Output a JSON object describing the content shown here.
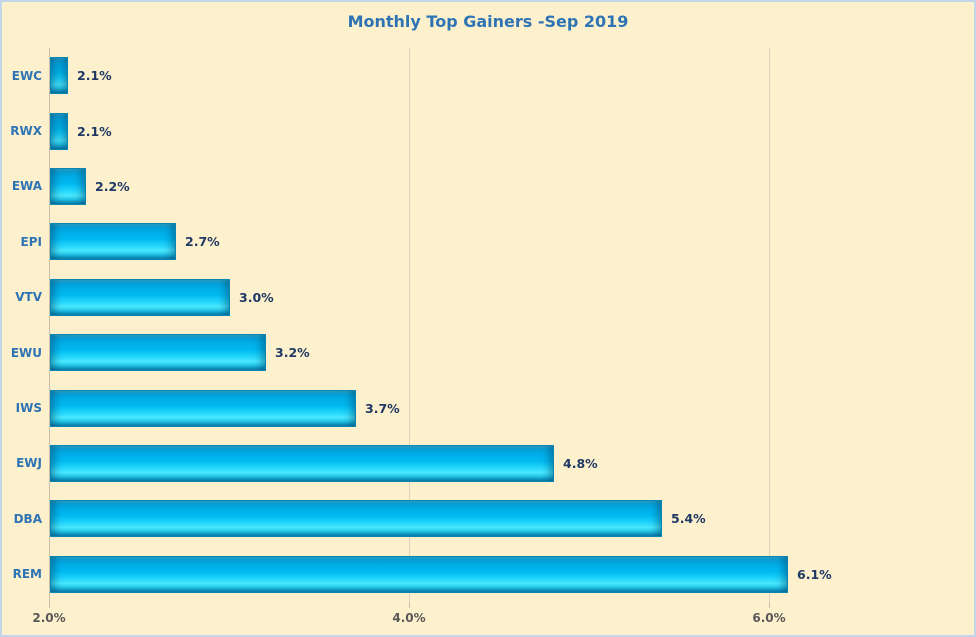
{
  "window": {
    "background_color": "#FDF0CC",
    "border_color": "#C3D6EB"
  },
  "chart_data": {
    "type": "bar",
    "orientation": "horizontal",
    "title": "Monthly Top Gainers -Sep 2019",
    "categories": [
      "EWC",
      "RWX",
      "EWA",
      "EPI",
      "VTV",
      "EWU",
      "IWS",
      "EWJ",
      "DBA",
      "REM"
    ],
    "values": [
      2.1,
      2.1,
      2.2,
      2.7,
      3.0,
      3.2,
      3.7,
      4.8,
      5.4,
      6.1
    ],
    "value_labels": [
      "2.1%",
      "2.1%",
      "2.2%",
      "2.7%",
      "3.0%",
      "3.2%",
      "3.7%",
      "4.8%",
      "5.4%",
      "6.1%"
    ],
    "xlabel": "",
    "ylabel": "",
    "xlim": [
      2.0,
      7.0
    ],
    "x_ticks": [
      2.0,
      4.0,
      6.0
    ],
    "x_tick_labels": [
      "2.0%",
      "4.0%",
      "6.0%"
    ],
    "grid": "vertical gridlines at 4.0% and 6.0%",
    "legend": "none",
    "colors": {
      "bar_fill": "#00B9F0",
      "bar_border": "#0B85B2",
      "title_text": "#2E74B5",
      "category_label_text": "#2E74B5",
      "value_label_text": "#1F3864",
      "tick_label_text": "#595959",
      "gridline": "#DBD2BF",
      "axis_line": "#C9C0AC",
      "plot_background": "#FDF0CC"
    }
  }
}
